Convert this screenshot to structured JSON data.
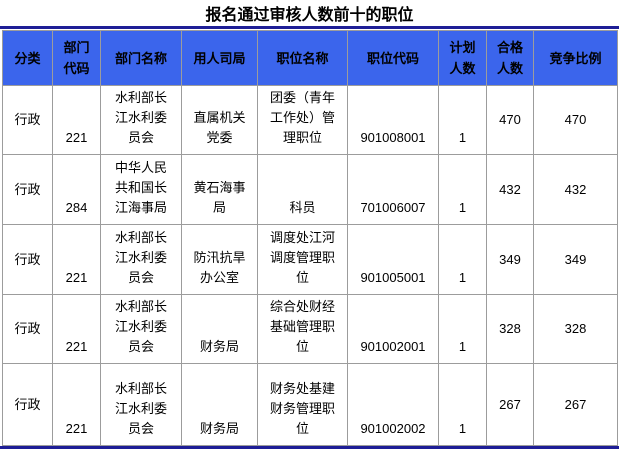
{
  "title": "报名通过审核人数前十的职位",
  "colors": {
    "header_bg": "#3b65ec",
    "accent_line": "#1e1e96",
    "cell_border": "#9c9c9c",
    "text": "#000000"
  },
  "table": {
    "columns": [
      "分类",
      "部门代码",
      "部门名称",
      "用人司局",
      "职位名称",
      "职位代码",
      "计划人数",
      "合格人数",
      "竞争比例"
    ],
    "rows": [
      [
        "行政",
        "221",
        "水利部长江水利委员会",
        "直属机关党委",
        "团委（青年工作处）管理职位",
        "901008001",
        "1",
        "470",
        "470"
      ],
      [
        "行政",
        "284",
        "中华人民共和国长江海事局",
        "黄石海事局",
        "科员",
        "701006007",
        "1",
        "432",
        "432"
      ],
      [
        "行政",
        "221",
        "水利部长江水利委员会",
        "防汛抗旱办公室",
        "调度处江河调度管理职位",
        "901005001",
        "1",
        "349",
        "349"
      ],
      [
        "行政",
        "221",
        "水利部长江水利委员会",
        "财务局",
        "综合处财经基础管理职位",
        "901002001",
        "1",
        "328",
        "328"
      ],
      [
        "行政",
        "221",
        "水利部长江水利委员会",
        "财务局",
        "财务处基建财务管理职位",
        "901002002",
        "1",
        "267",
        "267"
      ]
    ]
  }
}
